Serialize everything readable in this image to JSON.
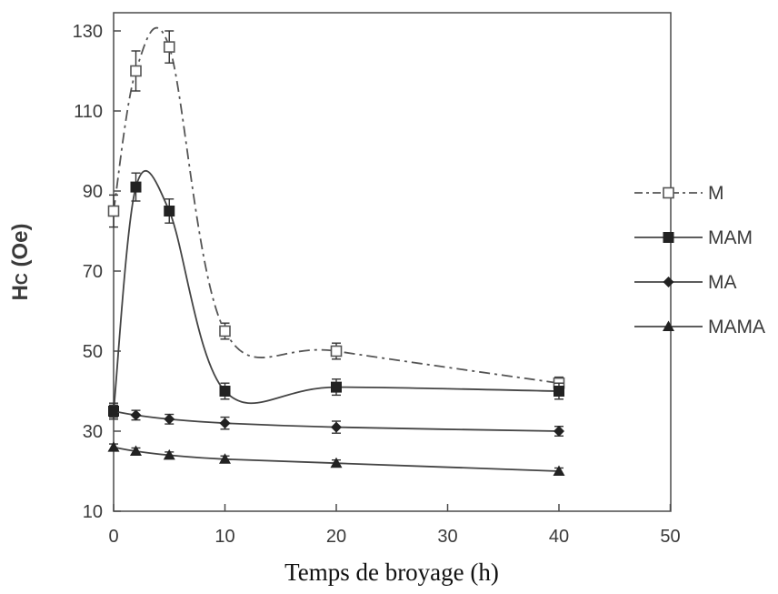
{
  "chart_data": {
    "type": "line",
    "title": "",
    "xlabel": "Temps de broyage (h)",
    "ylabel_main": "H",
    "ylabel_sub": "C",
    "ylabel_unit": " (Oe)",
    "xlim": [
      0,
      50
    ],
    "ylim": [
      10,
      135
    ],
    "xticks": [
      0,
      10,
      20,
      30,
      40,
      50
    ],
    "yticks": [
      10,
      30,
      50,
      70,
      90,
      110,
      130
    ],
    "legend_position": "right",
    "grid": false,
    "series": [
      {
        "name": "M",
        "marker": "open-square",
        "line": "dash-dot",
        "color": "#555555",
        "x": [
          0,
          2,
          5,
          10,
          20,
          40
        ],
        "y": [
          85,
          120,
          126,
          55,
          50,
          42
        ],
        "err": [
          4,
          5,
          4,
          2,
          2,
          1.5
        ]
      },
      {
        "name": "MAM",
        "marker": "filled-square",
        "line": "solid",
        "color": "#444444",
        "x": [
          0,
          2,
          5,
          10,
          20,
          40
        ],
        "y": [
          35,
          91,
          85,
          40,
          41,
          40
        ],
        "err": [
          2,
          3.5,
          3,
          2,
          2,
          2
        ]
      },
      {
        "name": "MA",
        "marker": "filled-diamond",
        "line": "solid",
        "color": "#444444",
        "x": [
          0,
          2,
          5,
          10,
          20,
          40
        ],
        "y": [
          35,
          34,
          33,
          32,
          31,
          30
        ],
        "err": [
          1.5,
          1.2,
          1.2,
          1.5,
          1.5,
          1.2
        ]
      },
      {
        "name": "MAMA",
        "marker": "filled-triangle",
        "line": "solid",
        "color": "#444444",
        "x": [
          0,
          2,
          5,
          10,
          20,
          40
        ],
        "y": [
          26,
          25,
          24,
          23,
          22,
          20
        ],
        "err": [
          0.8,
          0.8,
          0.8,
          0.8,
          0.8,
          0.8
        ]
      }
    ]
  }
}
